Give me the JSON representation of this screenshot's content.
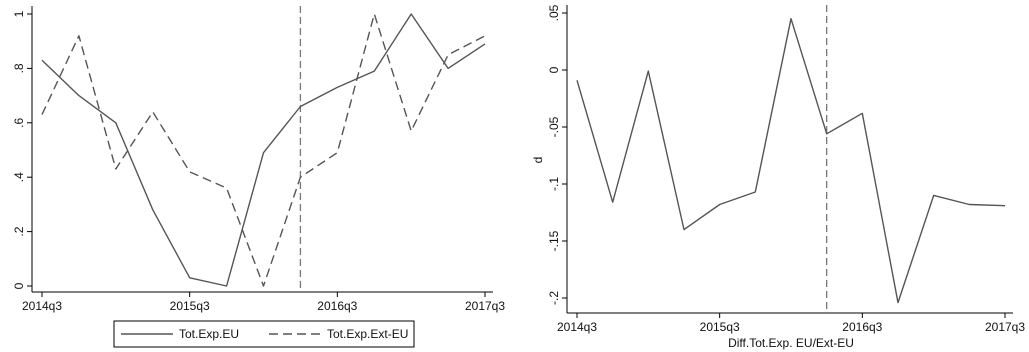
{
  "chart_data": [
    {
      "type": "line",
      "x_ticks": [
        "2014q3",
        "2015q3",
        "2016q3",
        "2017q3"
      ],
      "x": [
        "2014q3",
        "2014q4",
        "2015q1",
        "2015q2",
        "2015q3",
        "2015q4",
        "2016q1",
        "2016q2",
        "2016q3",
        "2016q4",
        "2017q1",
        "2017q2",
        "2017q3"
      ],
      "ylim": [
        0,
        1
      ],
      "y_ticks": [
        0,
        0.2,
        0.4,
        0.6,
        0.8,
        1
      ],
      "y_tick_labels": [
        "0",
        ".2",
        ".4",
        ".6",
        ".8",
        "1"
      ],
      "vline_at": "2016q2",
      "series": [
        {
          "name": "Tot.Exp.EU",
          "style": "solid",
          "values": [
            0.83,
            0.7,
            0.6,
            0.28,
            0.03,
            0.0,
            0.49,
            0.66,
            0.73,
            0.79,
            1.0,
            0.8,
            0.89
          ]
        },
        {
          "name": "Tot.Exp.Ext-EU",
          "style": "dashed",
          "values": [
            0.63,
            0.92,
            0.43,
            0.64,
            0.42,
            0.36,
            0.0,
            0.4,
            0.49,
            1.0,
            0.57,
            0.85,
            0.92
          ]
        }
      ],
      "legend_position": "bottom",
      "xlabel": "",
      "ylabel": ""
    },
    {
      "type": "line",
      "x_ticks": [
        "2014q3",
        "2015q3",
        "2016q3",
        "2017q3"
      ],
      "x": [
        "2014q3",
        "2014q4",
        "2015q1",
        "2015q2",
        "2015q3",
        "2015q4",
        "2016q1",
        "2016q2",
        "2016q3",
        "2016q4",
        "2017q1",
        "2017q2",
        "2017q3"
      ],
      "ylim": [
        -0.2,
        0.05
      ],
      "y_ticks": [
        -0.2,
        -0.15,
        -0.1,
        -0.05,
        0,
        0.05
      ],
      "y_tick_labels": [
        "-.2",
        "-.15",
        "-.1",
        "-.05",
        "0",
        ".05"
      ],
      "vline_at": "2016q2",
      "series": [
        {
          "values": [
            -0.009,
            -0.116,
            -0.001,
            -0.14,
            -0.118,
            -0.107,
            0.045,
            -0.056,
            -0.038,
            -0.204,
            -0.11,
            -0.118,
            -0.119
          ]
        }
      ],
      "xlabel": "Diff.Tot.Exp. EU/Ext-EU",
      "ylabel": "d"
    }
  ]
}
